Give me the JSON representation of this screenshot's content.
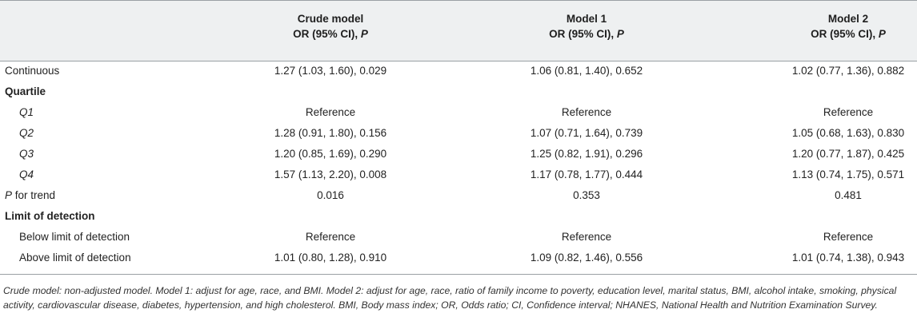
{
  "columns": [
    {
      "line1": "Crude model",
      "line2": "OR (95% CI), ",
      "line2_italic": "P"
    },
    {
      "line1": "Model 1",
      "line2": "OR (95% CI), ",
      "line2_italic": "P"
    },
    {
      "line1": "Model 2",
      "line2": "OR (95% CI), ",
      "line2_italic": "P"
    }
  ],
  "rows": [
    {
      "label": "Continuous",
      "values": [
        "1.27 (1.03, 1.60), 0.029",
        "1.06 (0.81, 1.40), 0.652",
        "1.02 (0.77, 1.36), 0.882"
      ]
    },
    {
      "label": "Quartile",
      "values": [
        "",
        "",
        ""
      ]
    },
    {
      "label": "Q1",
      "values": [
        "Reference",
        "Reference",
        "Reference"
      ]
    },
    {
      "label": "Q2",
      "values": [
        "1.28 (0.91, 1.80), 0.156",
        "1.07 (0.71, 1.64), 0.739",
        "1.05 (0.68, 1.63), 0.830"
      ]
    },
    {
      "label": "Q3",
      "values": [
        "1.20 (0.85, 1.69), 0.290",
        "1.25 (0.82, 1.91), 0.296",
        "1.20 (0.77, 1.87), 0.425"
      ]
    },
    {
      "label": "Q4",
      "values": [
        "1.57 (1.13, 2.20), 0.008",
        "1.17 (0.78, 1.77), 0.444",
        "1.13 (0.74, 1.75), 0.571"
      ]
    },
    {
      "label_italic": "P",
      "label": " for trend",
      "values": [
        "0.016",
        "0.353",
        "0.481"
      ]
    },
    {
      "label": "Limit of detection",
      "values": [
        "",
        "",
        ""
      ]
    },
    {
      "label": "Below limit of detection",
      "values": [
        "Reference",
        "Reference",
        "Reference"
      ]
    },
    {
      "label": "Above limit of detection",
      "values": [
        "1.01 (0.80, 1.28), 0.910",
        "1.09 (0.82, 1.46), 0.556",
        "1.01 (0.74, 1.38), 0.943"
      ]
    }
  ],
  "footnote": "Crude model: non-adjusted model. Model 1: adjust for age, race, and BMI. Model 2: adjust for age, race, ratio of family income to poverty, education level, marital status, BMI, alcohol intake, smoking, physical activity, cardiovascular disease, diabetes, hypertension, and high cholesterol. BMI, Body mass index; OR, Odds ratio; CI, Confidence interval; NHANES, National Health and Nutrition Examination Survey."
}
